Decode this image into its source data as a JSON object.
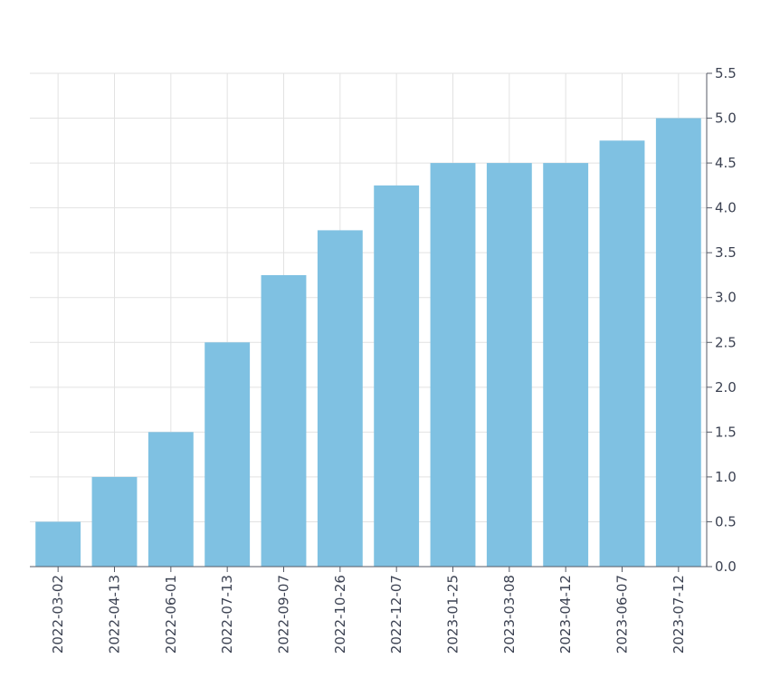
{
  "chart_data": {
    "type": "bar",
    "categories": [
      "2022-03-02",
      "2022-04-13",
      "2022-06-01",
      "2022-07-13",
      "2022-09-07",
      "2022-10-26",
      "2022-12-07",
      "2023-01-25",
      "2023-03-08",
      "2023-04-12",
      "2023-06-07",
      "2023-07-12"
    ],
    "values": [
      0.5,
      1.0,
      1.5,
      2.5,
      3.25,
      3.75,
      4.25,
      4.5,
      4.5,
      4.5,
      4.75,
      5.0
    ],
    "title": "",
    "xlabel": "",
    "ylabel": "",
    "ylim": [
      0,
      5.5
    ],
    "yticks": [
      "0.0",
      "0.5",
      "1.0",
      "1.5",
      "2.0",
      "2.5",
      "3.0",
      "3.5",
      "4.0",
      "4.5",
      "5.0",
      "5.5"
    ],
    "y_axis_side": "right",
    "grid": true,
    "bar_color": "#7fc1e2"
  }
}
